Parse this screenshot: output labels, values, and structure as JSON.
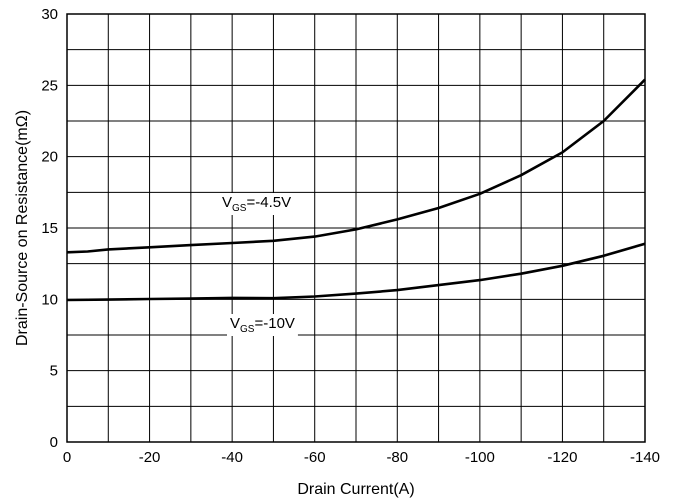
{
  "chart_data": {
    "type": "line",
    "title": "",
    "xlabel": "Drain Current(A)",
    "ylabel": "Drain-Source on Resistance(mΩ)",
    "xlim": [
      0,
      -140
    ],
    "ylim": [
      0,
      30
    ],
    "x_ticks": [
      "0",
      "-20",
      "-40",
      "-60",
      "-80",
      "-100",
      "-120",
      "-140"
    ],
    "y_ticks": [
      "0",
      "5",
      "10",
      "15",
      "20",
      "25",
      "30"
    ],
    "grid": true,
    "series": [
      {
        "name": "VGS=-4.5V",
        "label_main": "V",
        "label_sub": "GS",
        "label_rest": "=-4.5V",
        "x": [
          0,
          -5,
          -10,
          -20,
          -30,
          -40,
          -50,
          -60,
          -70,
          -80,
          -90,
          -100,
          -110,
          -120,
          -130,
          -140
        ],
        "y": [
          13.3,
          13.35,
          13.5,
          13.65,
          13.8,
          13.95,
          14.1,
          14.4,
          14.9,
          15.6,
          16.4,
          17.4,
          18.7,
          20.3,
          22.5,
          25.4
        ]
      },
      {
        "name": "VGS=-10V",
        "label_main": "V",
        "label_sub": "GS",
        "label_rest": "=-10V",
        "x": [
          0,
          -10,
          -20,
          -30,
          -40,
          -50,
          -60,
          -70,
          -80,
          -90,
          -100,
          -110,
          -120,
          -130,
          -140
        ],
        "y": [
          9.95,
          9.98,
          10.02,
          10.05,
          10.1,
          10.08,
          10.2,
          10.4,
          10.65,
          11.0,
          11.35,
          11.8,
          12.35,
          13.05,
          13.9
        ]
      }
    ]
  }
}
